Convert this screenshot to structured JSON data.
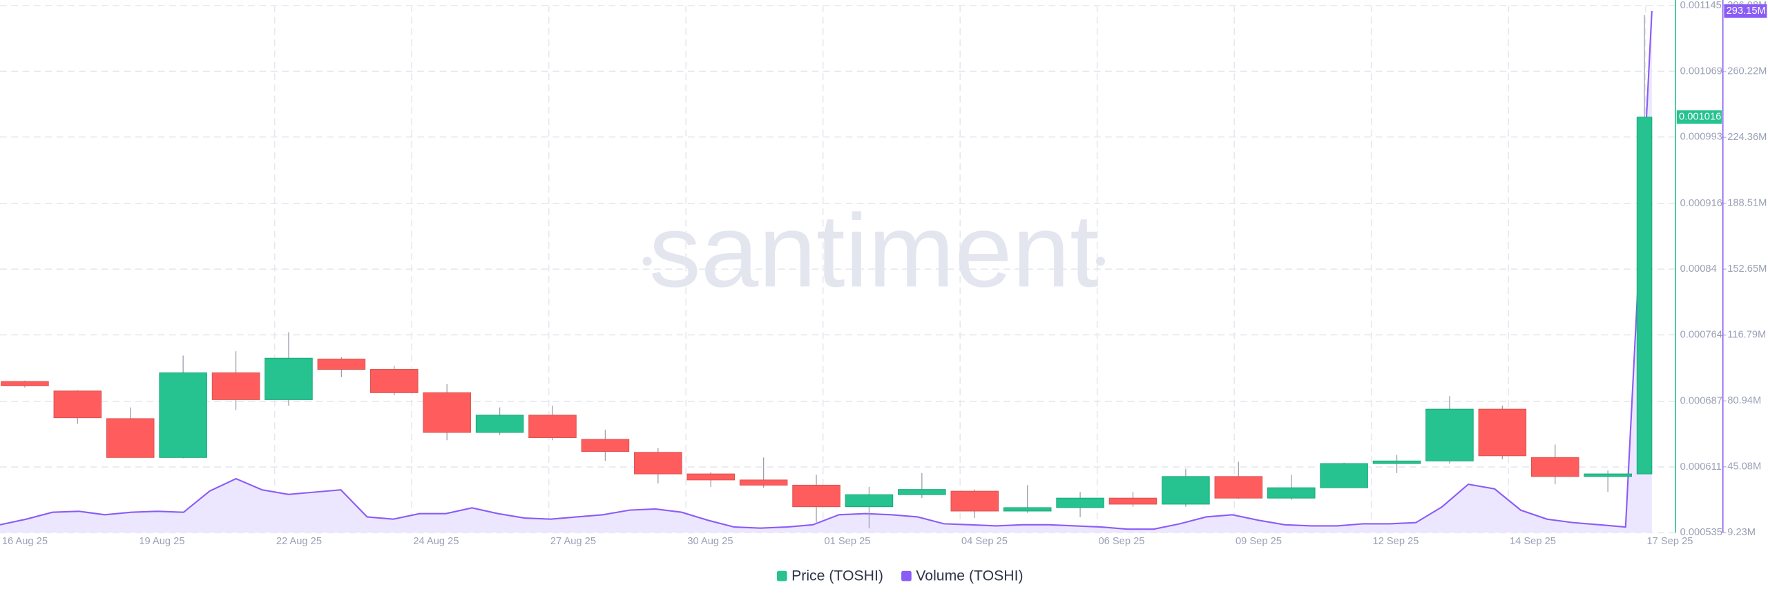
{
  "chart_data": {
    "type": "candlestick",
    "watermark": "santiment",
    "grid": true,
    "series": [
      {
        "name": "Price (TOSHI)",
        "type": "candlestick",
        "color": "#26c28f",
        "down_color": "#ff5d5d",
        "open": [
          0.00071,
          0.000699,
          0.000667,
          0.000622,
          0.00072,
          0.000689,
          0.000736,
          0.000724,
          0.000697,
          0.000651,
          0.000671,
          0.000643,
          0.000628,
          0.000603,
          0.000596,
          0.00059,
          0.000565,
          0.000579,
          0.000583,
          0.00056,
          0.000564,
          0.000575,
          0.000568,
          0.0006,
          0.000575,
          0.000587,
          0.000615,
          0.000618,
          0.000678,
          0.000622,
          0.0006,
          0.000603
        ],
        "high": [
          0.000711,
          0.0007,
          0.00068,
          0.00074,
          0.000745,
          0.000767,
          0.000738,
          0.000728,
          0.000707,
          0.00068,
          0.000682,
          0.000654,
          0.000633,
          0.000605,
          0.000622,
          0.000602,
          0.000588,
          0.000604,
          0.000585,
          0.00059,
          0.000582,
          0.000582,
          0.000609,
          0.000617,
          0.000602,
          0.000616,
          0.000625,
          0.000693,
          0.000682,
          0.000637,
          0.000607,
          0.001134
        ],
        "low": [
          0.000703,
          0.000661,
          0.000622,
          0.000621,
          0.000677,
          0.000682,
          0.000715,
          0.000694,
          0.000642,
          0.000648,
          0.000642,
          0.000618,
          0.000592,
          0.000588,
          0.000587,
          0.000547,
          0.00054,
          0.000575,
          0.000552,
          0.000558,
          0.000553,
          0.000565,
          0.000565,
          0.000574,
          0.000573,
          0.000587,
          0.000604,
          0.000615,
          0.00062,
          0.000591,
          0.000582,
          0.000603
        ],
        "close": [
          0.000705,
          0.000668,
          0.000622,
          0.00072,
          0.000689,
          0.000737,
          0.000724,
          0.000697,
          0.000651,
          0.000671,
          0.000645,
          0.000629,
          0.000603,
          0.000596,
          0.00059,
          0.000565,
          0.000579,
          0.000585,
          0.00056,
          0.000564,
          0.000575,
          0.000568,
          0.0006,
          0.000575,
          0.000587,
          0.000615,
          0.000618,
          0.000678,
          0.000624,
          0.0006,
          0.000603,
          0.001016
        ]
      },
      {
        "name": "Volume (TOSHI)",
        "type": "area",
        "axis": "y2",
        "color": "#8a5cf6",
        "fill": "#ece7ff",
        "values": [
          13.5,
          16.6,
          20.3,
          20.9,
          19.0,
          20.3,
          20.9,
          20.3,
          31.9,
          38.6,
          32.5,
          30.1,
          31.3,
          32.5,
          17.8,
          16.6,
          19.6,
          19.6,
          22.7,
          19.6,
          17.2,
          16.6,
          17.8,
          19.0,
          21.5,
          22.1,
          20.3,
          16.0,
          12.3,
          11.7,
          12.3,
          13.5,
          19.0,
          19.6,
          19.0,
          17.8,
          14.1,
          13.5,
          12.9,
          13.5,
          13.5,
          12.9,
          12.3,
          11.1,
          11.1,
          14.1,
          17.8,
          19.0,
          16.0,
          13.5,
          12.9,
          12.9,
          14.1,
          14.1,
          14.7,
          23.3,
          35.6,
          33.1,
          21.5,
          16.6,
          14.7,
          13.5,
          12.3,
          293.15
        ],
        "last_value_label": "293.15M"
      }
    ],
    "x_labels": [
      "16 Aug 25",
      "19 Aug 25",
      "22 Aug 25",
      "24 Aug 25",
      "27 Aug 25",
      "30 Aug 25",
      "01 Sep 25",
      "04 Sep 25",
      "06 Sep 25",
      "09 Sep 25",
      "12 Sep 25",
      "14 Sep 25",
      "17 Sep 25"
    ],
    "ylim": [
      0.000535,
      0.001145
    ],
    "yticks": [
      0.000535,
      0.000611,
      0.000687,
      0.000764,
      0.00084,
      0.000916,
      0.000993,
      0.001069,
      0.001145
    ],
    "y2lim": [
      9.23,
      296.08
    ],
    "y2ticks": [
      {
        "value": 9.23,
        "label": "9.23M"
      },
      {
        "value": 45.08,
        "label": "45.08M"
      },
      {
        "value": 80.94,
        "label": "80.94M"
      },
      {
        "value": 116.79,
        "label": "116.79M"
      },
      {
        "value": 152.65,
        "label": "152.65M"
      },
      {
        "value": 188.51,
        "label": "188.51M"
      },
      {
        "value": 224.36,
        "label": "224.36M"
      },
      {
        "value": 260.22,
        "label": "260.22M"
      },
      {
        "value": 296.08,
        "label": "296.08M"
      }
    ]
  }
}
